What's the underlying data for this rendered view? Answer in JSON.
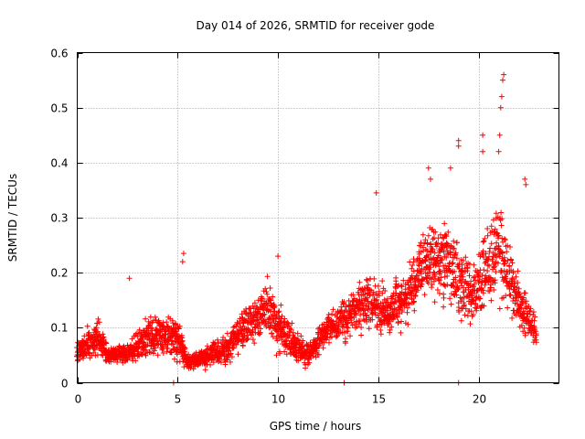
{
  "chart_data": {
    "type": "scatter",
    "title": "Day 014 of 2026, SRMTID for receiver gode",
    "xlabel": "GPS time / hours",
    "ylabel": "SRMTID / TECUs",
    "xlim": [
      0,
      24
    ],
    "ylim": [
      0,
      0.6
    ],
    "x_ticks": [
      0,
      5,
      10,
      15,
      20
    ],
    "x_tick_labels": [
      "0",
      "5",
      "10",
      "15",
      "20"
    ],
    "y_ticks": [
      0,
      0.1,
      0.2,
      0.3,
      0.4,
      0.5,
      0.6
    ],
    "y_tick_labels": [
      "0",
      "0.1",
      "0.2",
      "0.3",
      "0.4",
      "0.5",
      "0.6"
    ],
    "grid": true,
    "marker": "+",
    "color": "#ff0000",
    "x_range_of_data_hours": [
      0,
      22.9
    ],
    "sample_interval_hours": 0.05,
    "envelope": [
      {
        "t": 0.0,
        "median": 0.055,
        "spread": 0.03
      },
      {
        "t": 1.0,
        "median": 0.085,
        "spread": 0.05
      },
      {
        "t": 1.5,
        "median": 0.05,
        "spread": 0.02
      },
      {
        "t": 2.5,
        "median": 0.055,
        "spread": 0.03
      },
      {
        "t": 3.5,
        "median": 0.08,
        "spread": 0.05
      },
      {
        "t": 4.5,
        "median": 0.09,
        "spread": 0.06
      },
      {
        "t": 5.0,
        "median": 0.08,
        "spread": 0.06
      },
      {
        "t": 5.5,
        "median": 0.035,
        "spread": 0.02
      },
      {
        "t": 6.5,
        "median": 0.05,
        "spread": 0.03
      },
      {
        "t": 7.5,
        "median": 0.06,
        "spread": 0.04
      },
      {
        "t": 8.5,
        "median": 0.11,
        "spread": 0.06
      },
      {
        "t": 9.5,
        "median": 0.13,
        "spread": 0.07
      },
      {
        "t": 10.5,
        "median": 0.08,
        "spread": 0.05
      },
      {
        "t": 11.5,
        "median": 0.05,
        "spread": 0.03
      },
      {
        "t": 12.5,
        "median": 0.1,
        "spread": 0.04
      },
      {
        "t": 13.5,
        "median": 0.12,
        "spread": 0.06
      },
      {
        "t": 14.5,
        "median": 0.15,
        "spread": 0.07
      },
      {
        "t": 15.5,
        "median": 0.13,
        "spread": 0.06
      },
      {
        "t": 16.5,
        "median": 0.16,
        "spread": 0.07
      },
      {
        "t": 17.5,
        "median": 0.23,
        "spread": 0.1
      },
      {
        "t": 18.5,
        "median": 0.22,
        "spread": 0.11
      },
      {
        "t": 19.5,
        "median": 0.16,
        "spread": 0.09
      },
      {
        "t": 20.5,
        "median": 0.21,
        "spread": 0.11
      },
      {
        "t": 21.0,
        "median": 0.25,
        "spread": 0.13
      },
      {
        "t": 21.5,
        "median": 0.19,
        "spread": 0.09
      },
      {
        "t": 22.5,
        "median": 0.11,
        "spread": 0.05
      },
      {
        "t": 22.9,
        "median": 0.09,
        "spread": 0.03
      }
    ],
    "notable_points": [
      {
        "x": 2.6,
        "y": 0.19
      },
      {
        "x": 5.3,
        "y": 0.235
      },
      {
        "x": 5.25,
        "y": 0.22
      },
      {
        "x": 10.0,
        "y": 0.23
      },
      {
        "x": 14.9,
        "y": 0.345
      },
      {
        "x": 17.5,
        "y": 0.39
      },
      {
        "x": 17.6,
        "y": 0.37
      },
      {
        "x": 18.6,
        "y": 0.39
      },
      {
        "x": 19.0,
        "y": 0.44
      },
      {
        "x": 19.0,
        "y": 0.43
      },
      {
        "x": 20.2,
        "y": 0.45
      },
      {
        "x": 20.2,
        "y": 0.42
      },
      {
        "x": 21.0,
        "y": 0.42
      },
      {
        "x": 21.05,
        "y": 0.45
      },
      {
        "x": 21.1,
        "y": 0.5
      },
      {
        "x": 21.15,
        "y": 0.52
      },
      {
        "x": 21.2,
        "y": 0.55
      },
      {
        "x": 21.25,
        "y": 0.56
      },
      {
        "x": 22.3,
        "y": 0.37
      },
      {
        "x": 22.35,
        "y": 0.36
      },
      {
        "x": 4.8,
        "y": 0.0
      },
      {
        "x": 13.3,
        "y": 0.0
      },
      {
        "x": 19.0,
        "y": 0.0
      }
    ]
  }
}
